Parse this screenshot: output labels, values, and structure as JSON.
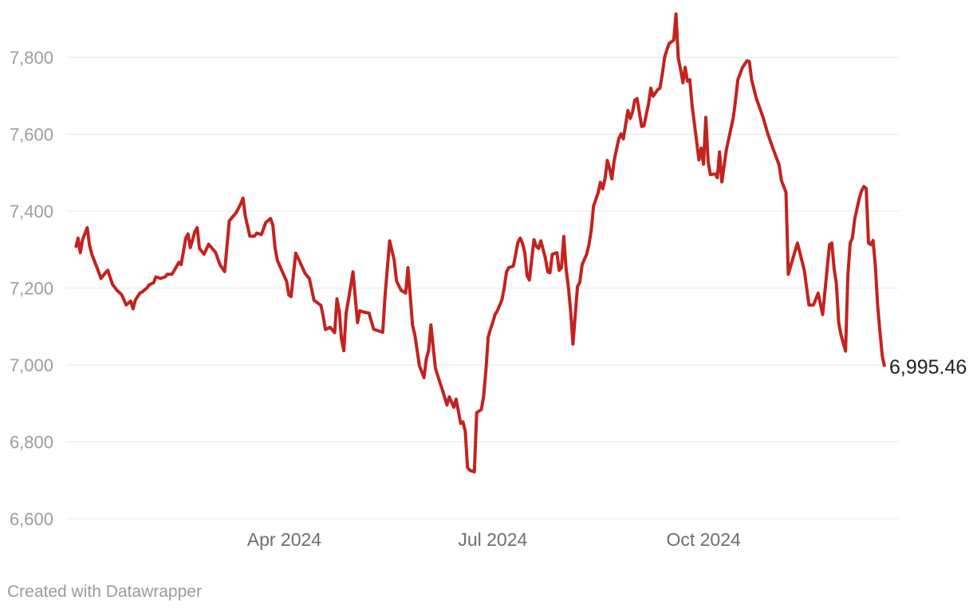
{
  "chart_data": {
    "type": "line",
    "title": "",
    "xlabel": "",
    "ylabel": "",
    "grid": "horizontal",
    "legend": "none",
    "x_range": [
      "2024-01-01",
      "2024-12-19"
    ],
    "ylim": [
      6600,
      7920
    ],
    "y_ticks": [
      {
        "value": 7800,
        "label": "7,800"
      },
      {
        "value": 7600,
        "label": "7,600"
      },
      {
        "value": 7400,
        "label": "7,400"
      },
      {
        "value": 7200,
        "label": "7,200"
      },
      {
        "value": 7000,
        "label": "7,000"
      },
      {
        "value": 6800,
        "label": "6,800"
      },
      {
        "value": 6600,
        "label": "6,600"
      }
    ],
    "x_ticks": [
      {
        "date": "2024-04-01",
        "label": "Apr 2024"
      },
      {
        "date": "2024-07-01",
        "label": "Jul 2024"
      },
      {
        "date": "2024-10-01",
        "label": "Oct 2024"
      }
    ],
    "end_label": {
      "text": "6,995.46",
      "value": 6995.46
    },
    "series": [
      {
        "name": "index value",
        "color": "#c4221e",
        "points": [
          [
            "2024-01-01",
            7305
          ],
          [
            "2024-01-02",
            7330
          ],
          [
            "2024-01-03",
            7292
          ],
          [
            "2024-01-04",
            7326
          ],
          [
            "2024-01-06",
            7357
          ],
          [
            "2024-01-07",
            7312
          ],
          [
            "2024-01-08",
            7288
          ],
          [
            "2024-01-10",
            7257
          ],
          [
            "2024-01-11",
            7242
          ],
          [
            "2024-01-12",
            7225
          ],
          [
            "2024-01-14",
            7240
          ],
          [
            "2024-01-15",
            7246
          ],
          [
            "2024-01-17",
            7210
          ],
          [
            "2024-01-19",
            7194
          ],
          [
            "2024-01-21",
            7183
          ],
          [
            "2024-01-23",
            7156
          ],
          [
            "2024-01-25",
            7166
          ],
          [
            "2024-01-26",
            7146
          ],
          [
            "2024-01-27",
            7169
          ],
          [
            "2024-01-29",
            7187
          ],
          [
            "2024-01-30",
            7190
          ],
          [
            "2024-02-01",
            7200
          ],
          [
            "2024-02-02",
            7208
          ],
          [
            "2024-02-04",
            7214
          ],
          [
            "2024-02-05",
            7229
          ],
          [
            "2024-02-07",
            7225
          ],
          [
            "2024-02-09",
            7229
          ],
          [
            "2024-02-10",
            7236
          ],
          [
            "2024-02-12",
            7236
          ],
          [
            "2024-02-15",
            7267
          ],
          [
            "2024-02-16",
            7261
          ],
          [
            "2024-02-18",
            7330
          ],
          [
            "2024-02-19",
            7341
          ],
          [
            "2024-02-20",
            7305
          ],
          [
            "2024-02-22",
            7347
          ],
          [
            "2024-02-23",
            7357
          ],
          [
            "2024-02-24",
            7303
          ],
          [
            "2024-02-26",
            7288
          ],
          [
            "2024-02-28",
            7314
          ],
          [
            "2024-03-02",
            7293
          ],
          [
            "2024-03-04",
            7260
          ],
          [
            "2024-03-06",
            7243
          ],
          [
            "2024-03-08",
            7375
          ],
          [
            "2024-03-11",
            7396
          ],
          [
            "2024-03-13",
            7419
          ],
          [
            "2024-03-14",
            7434
          ],
          [
            "2024-03-15",
            7387
          ],
          [
            "2024-03-17",
            7335
          ],
          [
            "2024-03-19",
            7335
          ],
          [
            "2024-03-20",
            7343
          ],
          [
            "2024-03-22",
            7339
          ],
          [
            "2024-03-24",
            7371
          ],
          [
            "2024-03-26",
            7381
          ],
          [
            "2024-03-27",
            7364
          ],
          [
            "2024-03-28",
            7304
          ],
          [
            "2024-03-29",
            7272
          ],
          [
            "2024-03-31",
            7245
          ],
          [
            "2024-04-02",
            7218
          ],
          [
            "2024-04-03",
            7182
          ],
          [
            "2024-04-04",
            7178
          ],
          [
            "2024-04-06",
            7291
          ],
          [
            "2024-04-08",
            7266
          ],
          [
            "2024-04-10",
            7239
          ],
          [
            "2024-04-12",
            7224
          ],
          [
            "2024-04-14",
            7168
          ],
          [
            "2024-04-17",
            7155
          ],
          [
            "2024-04-18",
            7126
          ],
          [
            "2024-04-19",
            7092
          ],
          [
            "2024-04-21",
            7098
          ],
          [
            "2024-04-23",
            7084
          ],
          [
            "2024-04-24",
            7172
          ],
          [
            "2024-04-25",
            7140
          ],
          [
            "2024-04-26",
            7067
          ],
          [
            "2024-04-27",
            7037
          ],
          [
            "2024-04-28",
            7135
          ],
          [
            "2024-04-29",
            7169
          ],
          [
            "2024-05-01",
            7242
          ],
          [
            "2024-05-03",
            7110
          ],
          [
            "2024-05-04",
            7141
          ],
          [
            "2024-05-06",
            7137
          ],
          [
            "2024-05-08",
            7135
          ],
          [
            "2024-05-10",
            7093
          ],
          [
            "2024-05-12",
            7089
          ],
          [
            "2024-05-14",
            7085
          ],
          [
            "2024-05-15",
            7180
          ],
          [
            "2024-05-17",
            7323
          ],
          [
            "2024-05-19",
            7272
          ],
          [
            "2024-05-20",
            7218
          ],
          [
            "2024-05-22",
            7194
          ],
          [
            "2024-05-24",
            7187
          ],
          [
            "2024-05-25",
            7253
          ],
          [
            "2024-05-26",
            7180
          ],
          [
            "2024-05-27",
            7103
          ],
          [
            "2024-05-28",
            7078
          ],
          [
            "2024-05-30",
            6998
          ],
          [
            "2024-06-01",
            6967
          ],
          [
            "2024-06-02",
            7016
          ],
          [
            "2024-06-03",
            7037
          ],
          [
            "2024-06-04",
            7104
          ],
          [
            "2024-06-06",
            6991
          ],
          [
            "2024-06-08",
            6953
          ],
          [
            "2024-06-09",
            6936
          ],
          [
            "2024-06-11",
            6896
          ],
          [
            "2024-06-12",
            6917
          ],
          [
            "2024-06-14",
            6890
          ],
          [
            "2024-06-15",
            6911
          ],
          [
            "2024-06-17",
            6848
          ],
          [
            "2024-06-18",
            6852
          ],
          [
            "2024-06-19",
            6827
          ],
          [
            "2024-06-20",
            6733
          ],
          [
            "2024-06-21",
            6726
          ],
          [
            "2024-06-23",
            6722
          ],
          [
            "2024-06-24",
            6876
          ],
          [
            "2024-06-26",
            6884
          ],
          [
            "2024-06-27",
            6917
          ],
          [
            "2024-06-28",
            6984
          ],
          [
            "2024-06-29",
            7072
          ],
          [
            "2024-06-30",
            7093
          ],
          [
            "2024-07-01",
            7110
          ],
          [
            "2024-07-02",
            7131
          ],
          [
            "2024-07-03",
            7141
          ],
          [
            "2024-07-05",
            7169
          ],
          [
            "2024-07-06",
            7200
          ],
          [
            "2024-07-07",
            7242
          ],
          [
            "2024-07-08",
            7253
          ],
          [
            "2024-07-10",
            7257
          ],
          [
            "2024-07-11",
            7288
          ],
          [
            "2024-07-12",
            7319
          ],
          [
            "2024-07-13",
            7330
          ],
          [
            "2024-07-14",
            7316
          ],
          [
            "2024-07-15",
            7292
          ],
          [
            "2024-07-16",
            7232
          ],
          [
            "2024-07-17",
            7221
          ],
          [
            "2024-07-19",
            7326
          ],
          [
            "2024-07-20",
            7309
          ],
          [
            "2024-07-21",
            7303
          ],
          [
            "2024-07-22",
            7323
          ],
          [
            "2024-07-24",
            7277
          ],
          [
            "2024-07-25",
            7242
          ],
          [
            "2024-07-26",
            7240
          ],
          [
            "2024-07-27",
            7288
          ],
          [
            "2024-07-29",
            7292
          ],
          [
            "2024-07-30",
            7246
          ],
          [
            "2024-07-31",
            7253
          ],
          [
            "2024-08-01",
            7334
          ],
          [
            "2024-08-02",
            7250
          ],
          [
            "2024-08-03",
            7204
          ],
          [
            "2024-08-04",
            7141
          ],
          [
            "2024-08-05",
            7054
          ],
          [
            "2024-08-07",
            7204
          ],
          [
            "2024-08-08",
            7215
          ],
          [
            "2024-08-09",
            7261
          ],
          [
            "2024-08-11",
            7288
          ],
          [
            "2024-08-12",
            7313
          ],
          [
            "2024-08-13",
            7351
          ],
          [
            "2024-08-14",
            7413
          ],
          [
            "2024-08-16",
            7448
          ],
          [
            "2024-08-17",
            7475
          ],
          [
            "2024-08-18",
            7458
          ],
          [
            "2024-08-19",
            7484
          ],
          [
            "2024-08-20",
            7532
          ],
          [
            "2024-08-21",
            7511
          ],
          [
            "2024-08-22",
            7484
          ],
          [
            "2024-08-23",
            7532
          ],
          [
            "2024-08-25",
            7588
          ],
          [
            "2024-08-26",
            7601
          ],
          [
            "2024-08-27",
            7588
          ],
          [
            "2024-08-29",
            7662
          ],
          [
            "2024-08-30",
            7641
          ],
          [
            "2024-08-31",
            7658
          ],
          [
            "2024-09-01",
            7689
          ],
          [
            "2024-09-02",
            7693
          ],
          [
            "2024-09-04",
            7620
          ],
          [
            "2024-09-05",
            7622
          ],
          [
            "2024-09-06",
            7651
          ],
          [
            "2024-09-07",
            7679
          ],
          [
            "2024-09-08",
            7720
          ],
          [
            "2024-09-09",
            7699
          ],
          [
            "2024-09-11",
            7716
          ],
          [
            "2024-09-12",
            7720
          ],
          [
            "2024-09-13",
            7756
          ],
          [
            "2024-09-14",
            7800
          ],
          [
            "2024-09-15",
            7820
          ],
          [
            "2024-09-16",
            7836
          ],
          [
            "2024-09-18",
            7845
          ],
          [
            "2024-09-19",
            7913
          ],
          [
            "2024-09-20",
            7798
          ],
          [
            "2024-09-21",
            7768
          ],
          [
            "2024-09-22",
            7734
          ],
          [
            "2024-09-23",
            7774
          ],
          [
            "2024-09-24",
            7738
          ],
          [
            "2024-09-25",
            7742
          ],
          [
            "2024-09-26",
            7675
          ],
          [
            "2024-09-28",
            7581
          ],
          [
            "2024-09-29",
            7533
          ],
          [
            "2024-09-30",
            7564
          ],
          [
            "2024-10-01",
            7522
          ],
          [
            "2024-10-02",
            7644
          ],
          [
            "2024-10-03",
            7529
          ],
          [
            "2024-10-04",
            7495
          ],
          [
            "2024-10-06",
            7497
          ],
          [
            "2024-10-07",
            7487
          ],
          [
            "2024-10-08",
            7554
          ],
          [
            "2024-10-09",
            7476
          ],
          [
            "2024-10-11",
            7560
          ],
          [
            "2024-10-14",
            7644
          ],
          [
            "2024-10-15",
            7690
          ],
          [
            "2024-10-16",
            7742
          ],
          [
            "2024-10-18",
            7774
          ],
          [
            "2024-10-20",
            7791
          ],
          [
            "2024-10-21",
            7789
          ],
          [
            "2024-10-22",
            7742
          ],
          [
            "2024-10-24",
            7694
          ],
          [
            "2024-10-27",
            7644
          ],
          [
            "2024-10-29",
            7602
          ],
          [
            "2024-10-31",
            7568
          ],
          [
            "2024-11-03",
            7520
          ],
          [
            "2024-11-04",
            7480
          ],
          [
            "2024-11-06",
            7449
          ],
          [
            "2024-11-07",
            7236
          ],
          [
            "2024-11-09",
            7277
          ],
          [
            "2024-11-11",
            7317
          ],
          [
            "2024-11-14",
            7246
          ],
          [
            "2024-11-16",
            7156
          ],
          [
            "2024-11-18",
            7156
          ],
          [
            "2024-11-20",
            7187
          ],
          [
            "2024-11-22",
            7131
          ],
          [
            "2024-11-25",
            7313
          ],
          [
            "2024-11-26",
            7317
          ],
          [
            "2024-11-27",
            7250
          ],
          [
            "2024-11-28",
            7212
          ],
          [
            "2024-11-29",
            7110
          ],
          [
            "2024-11-30",
            7078
          ],
          [
            "2024-12-02",
            7036
          ],
          [
            "2024-12-03",
            7233
          ],
          [
            "2024-12-04",
            7317
          ],
          [
            "2024-12-05",
            7330
          ],
          [
            "2024-12-06",
            7380
          ],
          [
            "2024-12-08",
            7434
          ],
          [
            "2024-12-09",
            7453
          ],
          [
            "2024-12-10",
            7464
          ],
          [
            "2024-12-11",
            7459
          ],
          [
            "2024-12-12",
            7317
          ],
          [
            "2024-12-13",
            7313
          ],
          [
            "2024-12-14",
            7324
          ],
          [
            "2024-12-15",
            7257
          ],
          [
            "2024-12-16",
            7156
          ],
          [
            "2024-12-17",
            7087
          ],
          [
            "2024-12-18",
            7024
          ],
          [
            "2024-12-19",
            6995.46
          ]
        ]
      }
    ]
  },
  "colors": {
    "background": "#ffffff",
    "line": "#c4221e",
    "grid": "#e9e9e9",
    "y_tick_text": "#9d9d9d",
    "x_tick_text": "#6f6f6f",
    "end_label_text": "#222222",
    "attribution_text": "#9b9b9b"
  },
  "footer": {
    "attribution": "Created with Datawrapper"
  }
}
